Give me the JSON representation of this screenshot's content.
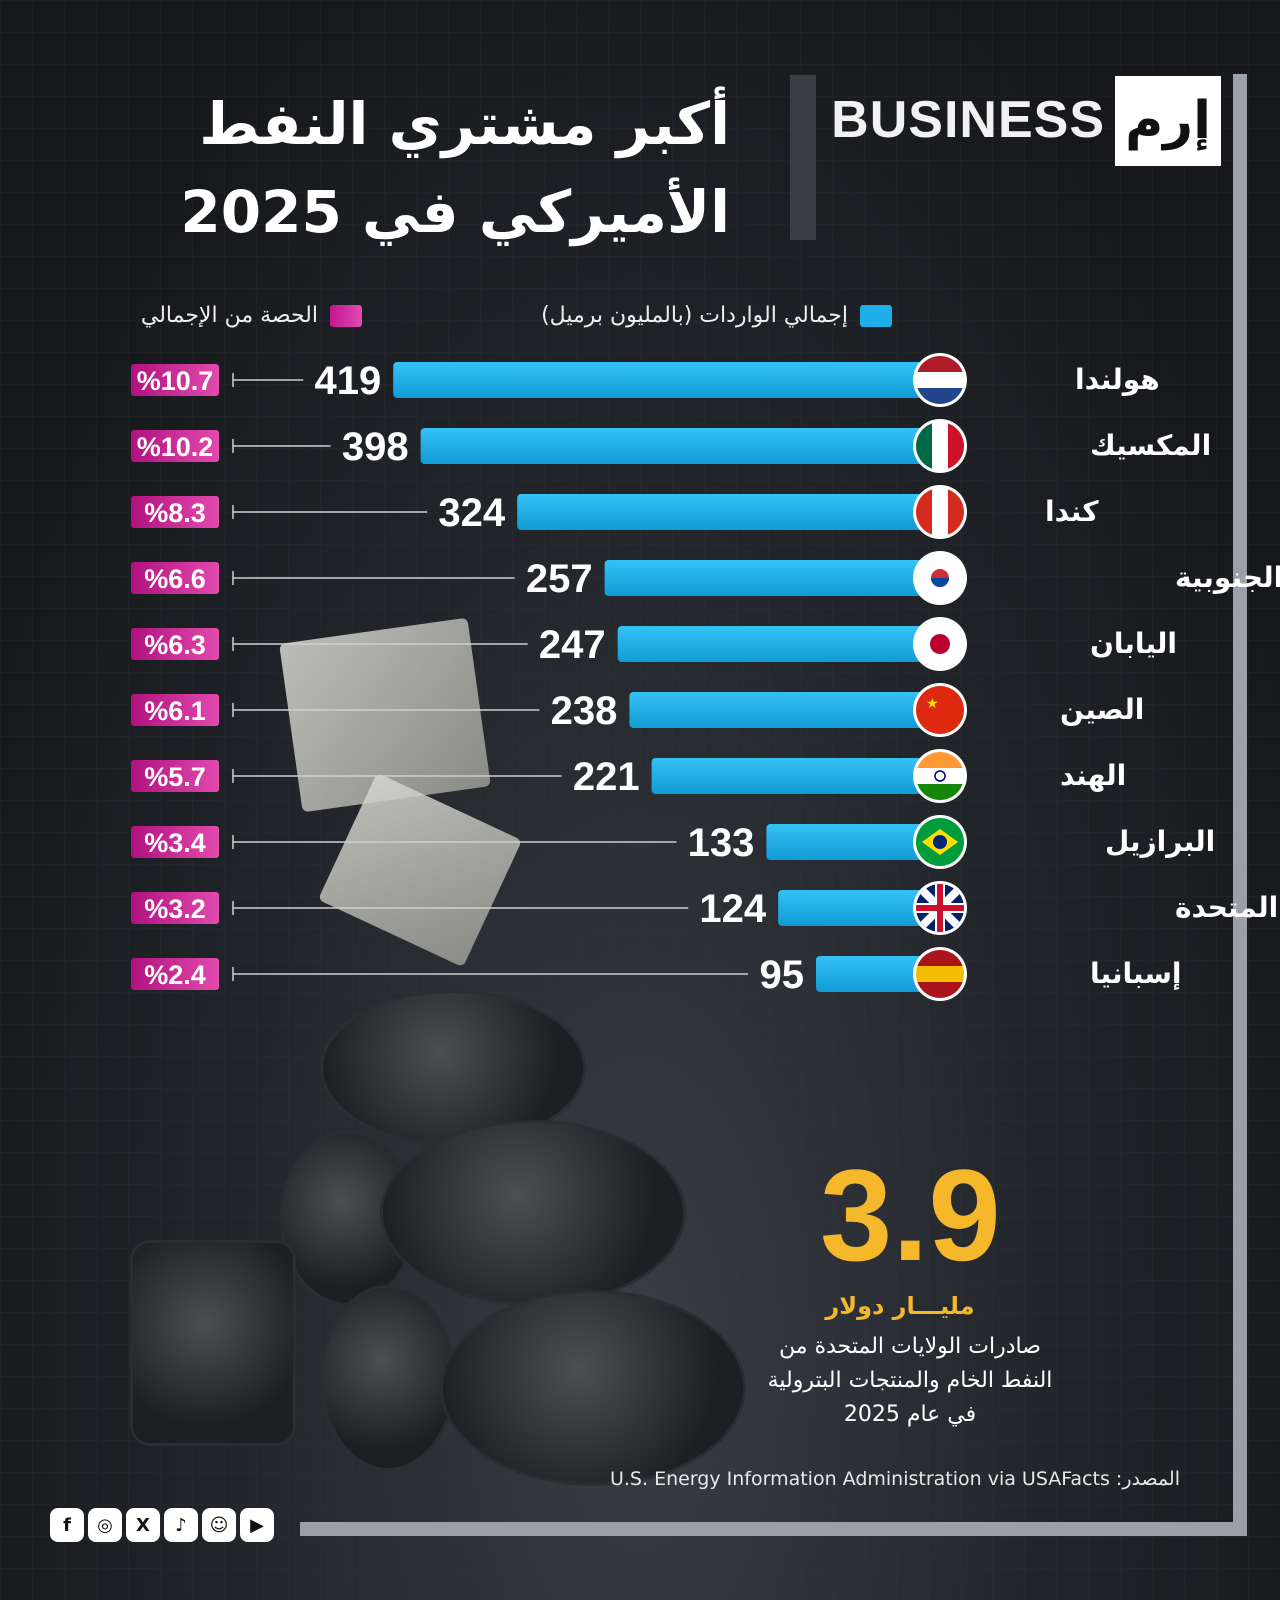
{
  "brand": {
    "logo_mark": "إرم",
    "logo_word": "BUSINESS"
  },
  "title_line1": "أكبر مشتري النفط",
  "title_line2": "الأميركي في 2025",
  "legend": {
    "imports_label": "إجمالي الواردات (بالمليون برميل)",
    "share_label": "الحصة من الإجمالي",
    "imports_color": "#1eaeea",
    "share_color": "#c2178f"
  },
  "chart_data": {
    "type": "bar",
    "orientation": "horizontal",
    "unit": "بالمليون برميل",
    "categories": [
      "هولندا",
      "المكسيك",
      "كندا",
      "كوريا الجنوبية",
      "اليابان",
      "الصين",
      "الهند",
      "البرازيل",
      "المملكة المتحدة",
      "إسبانيا"
    ],
    "series": [
      {
        "name": "إجمالي الواردات (بالمليون برميل)",
        "values": [
          419,
          398,
          324,
          257,
          247,
          238,
          221,
          133,
          124,
          95
        ]
      },
      {
        "name": "الحصة من الإجمالي",
        "values": [
          10.7,
          10.2,
          8.3,
          6.6,
          6.3,
          6.1,
          5.7,
          3.4,
          3.2,
          2.4
        ]
      }
    ],
    "share_labels": [
      "%10.7",
      "%10.2",
      "%8.3",
      "%6.6",
      "%6.3",
      "%6.1",
      "%5.7",
      "%3.4",
      "%3.2",
      "%2.4"
    ],
    "flags": [
      "netherlands-flag-icon",
      "mexico-flag-icon",
      "canada-flag-icon",
      "south-korea-flag-icon",
      "japan-flag-icon",
      "china-flag-icon",
      "india-flag-icon",
      "brazil-flag-icon",
      "uk-flag-icon",
      "spain-flag-icon"
    ]
  },
  "highlight": {
    "value": "3.9",
    "unit": "مليـــار دولار",
    "description": "صادرات الولايات المتحدة من النفط الخام والمنتجات البترولية في عام 2025",
    "color": "#f5b82b"
  },
  "source": "المصدر: U.S. Energy Information Administration via USAFacts",
  "socials": [
    "facebook-icon",
    "instagram-icon",
    "x-icon",
    "tiktok-icon",
    "snapchat-icon",
    "youtube-icon"
  ]
}
